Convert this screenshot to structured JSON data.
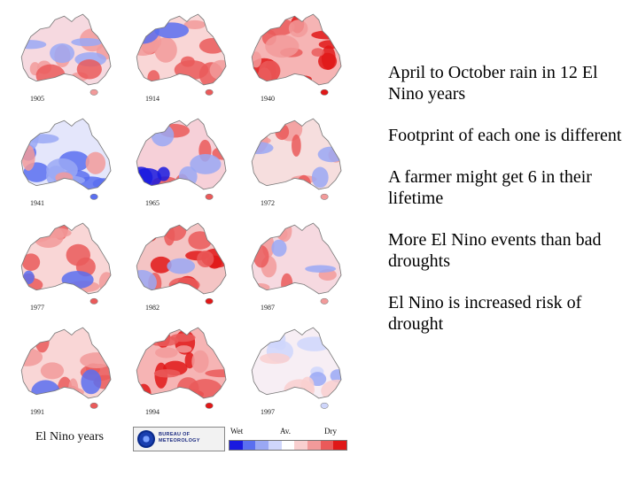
{
  "maps": [
    {
      "year": "1905",
      "pattern": "mixed"
    },
    {
      "year": "1914",
      "pattern": "dry-east"
    },
    {
      "year": "1940",
      "pattern": "dry-widespread"
    },
    {
      "year": "1941",
      "pattern": "wet-west"
    },
    {
      "year": "1965",
      "pattern": "dry-north"
    },
    {
      "year": "1972",
      "pattern": "mixed-dry"
    },
    {
      "year": "1977",
      "pattern": "dry-east"
    },
    {
      "year": "1982",
      "pattern": "dry-east-strong"
    },
    {
      "year": "1987",
      "pattern": "mixed"
    },
    {
      "year": "1991",
      "pattern": "dry-east"
    },
    {
      "year": "1994",
      "pattern": "dry-widespread"
    },
    {
      "year": "1997",
      "pattern": "near-average"
    }
  ],
  "caption": "El Nino years",
  "logo": {
    "line1": "BUREAU OF",
    "line2": "METEOROLOGY"
  },
  "legend": {
    "wet_label": "Wet",
    "avg_label": "Av.",
    "dry_label": "Dry",
    "colors": [
      "#1a1adf",
      "#5a6ff0",
      "#9aa8f4",
      "#cfd6fb",
      "#ffffff",
      "#f9cfcf",
      "#f29a9a",
      "#ea5a5a",
      "#e01818"
    ]
  },
  "bullets": [
    "April to October rain in 12 El Nino years",
    "Footprint of each one is different",
    "A farmer might get 6 in their lifetime",
    "More El Nino events than bad droughts",
    "El Nino is increased risk of drought"
  ]
}
